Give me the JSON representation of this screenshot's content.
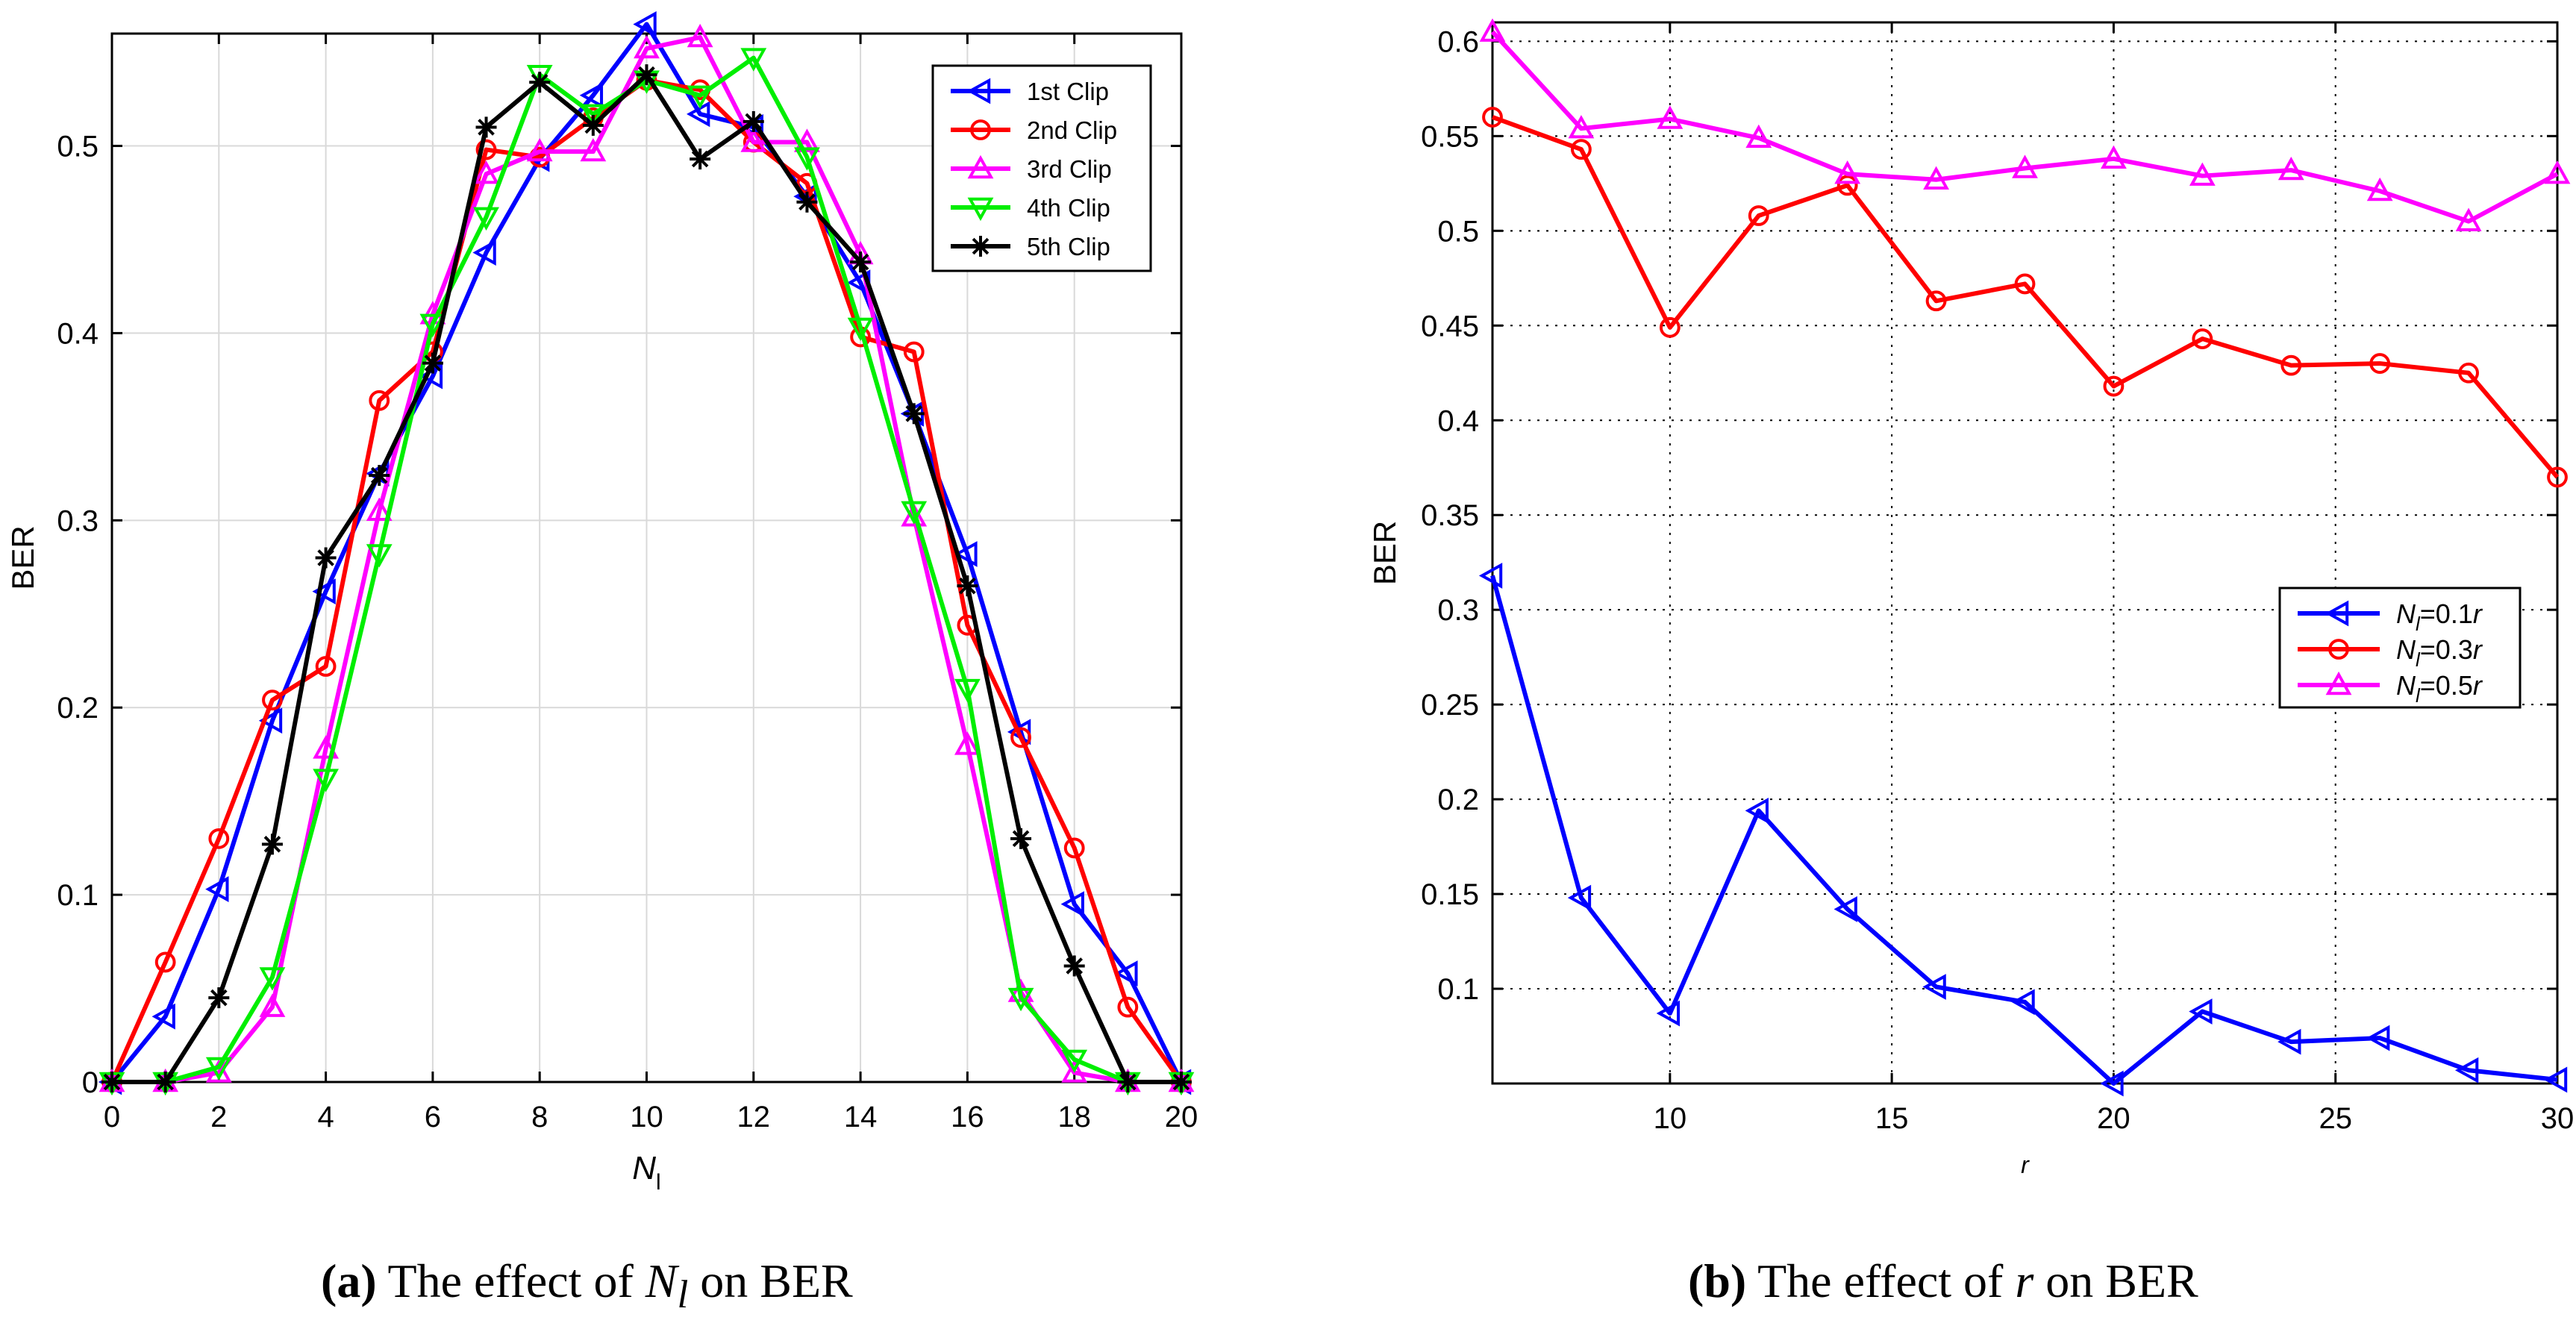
{
  "chart_data": [
    {
      "type": "line",
      "panel": "a",
      "xlabel": "N_l",
      "ylabel": "BER",
      "xlim": [
        0,
        20
      ],
      "ylim": [
        0,
        0.56
      ],
      "xticks": [
        0,
        2,
        4,
        6,
        8,
        10,
        12,
        14,
        16,
        18,
        20
      ],
      "yticks": [
        0,
        0.1,
        0.2,
        0.3,
        0.4,
        0.5
      ],
      "ytick_labels": [
        "0",
        "0.1",
        "0.2",
        "0.3",
        "0.4",
        "0.5"
      ],
      "grid": true,
      "legend_position": "top-right",
      "x": [
        0,
        1,
        2,
        3,
        4,
        5,
        6,
        7,
        8,
        9,
        10,
        11,
        12,
        13,
        14,
        15,
        16,
        17,
        18,
        19,
        20
      ],
      "series": [
        {
          "name": "1st Clip",
          "color": "#0000ff",
          "marker": "triangle-left",
          "values": [
            0,
            0.035,
            0.103,
            0.193,
            0.262,
            0.325,
            0.377,
            0.443,
            0.493,
            0.527,
            0.565,
            0.517,
            0.51,
            0.473,
            0.427,
            0.357,
            0.282,
            0.187,
            0.095,
            0.058,
            0
          ]
        },
        {
          "name": "2nd Clip",
          "color": "#ff0000",
          "marker": "circle",
          "values": [
            0,
            0.064,
            0.13,
            0.204,
            0.222,
            0.364,
            0.39,
            0.498,
            0.494,
            0.515,
            0.535,
            0.53,
            0.502,
            0.48,
            0.398,
            0.39,
            0.244,
            0.184,
            0.125,
            0.04,
            0
          ]
        },
        {
          "name": "3rd Clip",
          "color": "#ff00ff",
          "marker": "triangle-up",
          "values": [
            0,
            0,
            0.005,
            0.04,
            0.178,
            0.305,
            0.41,
            0.485,
            0.497,
            0.497,
            0.552,
            0.558,
            0.502,
            0.502,
            0.442,
            0.302,
            0.18,
            0.048,
            0.005,
            0,
            0
          ]
        },
        {
          "name": "4th Clip",
          "color": "#00ee00",
          "marker": "triangle-down",
          "values": [
            0,
            0,
            0.008,
            0.056,
            0.162,
            0.282,
            0.405,
            0.462,
            0.538,
            0.517,
            0.535,
            0.527,
            0.547,
            0.494,
            0.403,
            0.305,
            0.21,
            0.045,
            0.012,
            0,
            0
          ]
        },
        {
          "name": "5th Clip",
          "color": "#000000",
          "marker": "asterisk",
          "values": [
            0,
            0,
            0.045,
            0.127,
            0.28,
            0.324,
            0.384,
            0.51,
            0.534,
            0.511,
            0.538,
            0.493,
            0.513,
            0.47,
            0.438,
            0.357,
            0.265,
            0.13,
            0.062,
            0,
            0
          ]
        }
      ]
    },
    {
      "type": "line",
      "panel": "b",
      "xlabel": "r",
      "ylabel": "BER",
      "xlim": [
        6,
        30
      ],
      "ylim": [
        0.05,
        0.61
      ],
      "xticks": [
        10,
        15,
        20,
        25,
        30
      ],
      "yticks": [
        0.1,
        0.15,
        0.2,
        0.25,
        0.3,
        0.35,
        0.4,
        0.45,
        0.5,
        0.55,
        0.6
      ],
      "ytick_labels": [
        "0.1",
        "0.15",
        "0.2",
        "0.25",
        "0.3",
        "0.35",
        "0.4",
        "0.45",
        "0.5",
        "0.55",
        "0.6"
      ],
      "grid": true,
      "grid_style": "dotted",
      "legend_position": "middle-right",
      "x": [
        6,
        8,
        10,
        12,
        14,
        16,
        18,
        20,
        22,
        24,
        26,
        28,
        30
      ],
      "series": [
        {
          "name": "N_l=0.1r",
          "legend_prefix": "N",
          "legend_sub": "l",
          "legend_suffix": "=0.1",
          "legend_var": "r",
          "color": "#0000ff",
          "marker": "triangle-left",
          "values": [
            0.318,
            0.148,
            0.087,
            0.194,
            0.142,
            0.101,
            0.093,
            0.05,
            0.088,
            0.072,
            0.074,
            0.057,
            0.052
          ]
        },
        {
          "name": "N_l=0.3r",
          "legend_prefix": "N",
          "legend_sub": "l",
          "legend_suffix": "=0.3",
          "legend_var": "r",
          "color": "#ff0000",
          "marker": "circle",
          "values": [
            0.56,
            0.543,
            0.449,
            0.508,
            0.524,
            0.463,
            0.472,
            0.418,
            0.443,
            0.429,
            0.43,
            0.425,
            0.37
          ]
        },
        {
          "name": "N_l=0.5r",
          "legend_prefix": "N",
          "legend_sub": "l",
          "legend_suffix": "=0.5",
          "legend_var": "r",
          "color": "#ff00ff",
          "marker": "triangle-up",
          "values": [
            0.605,
            0.554,
            0.559,
            0.549,
            0.53,
            0.527,
            0.533,
            0.538,
            0.529,
            0.532,
            0.521,
            0.505,
            0.53
          ]
        }
      ]
    }
  ],
  "captions": {
    "a": {
      "label": "(a)",
      "text_before": "The effect of ",
      "var": "N",
      "sub": "l",
      "text_after": " on BER"
    },
    "b": {
      "label": "(b)",
      "text_before": "The effect of ",
      "var": "r",
      "text_after": " on BER"
    }
  }
}
